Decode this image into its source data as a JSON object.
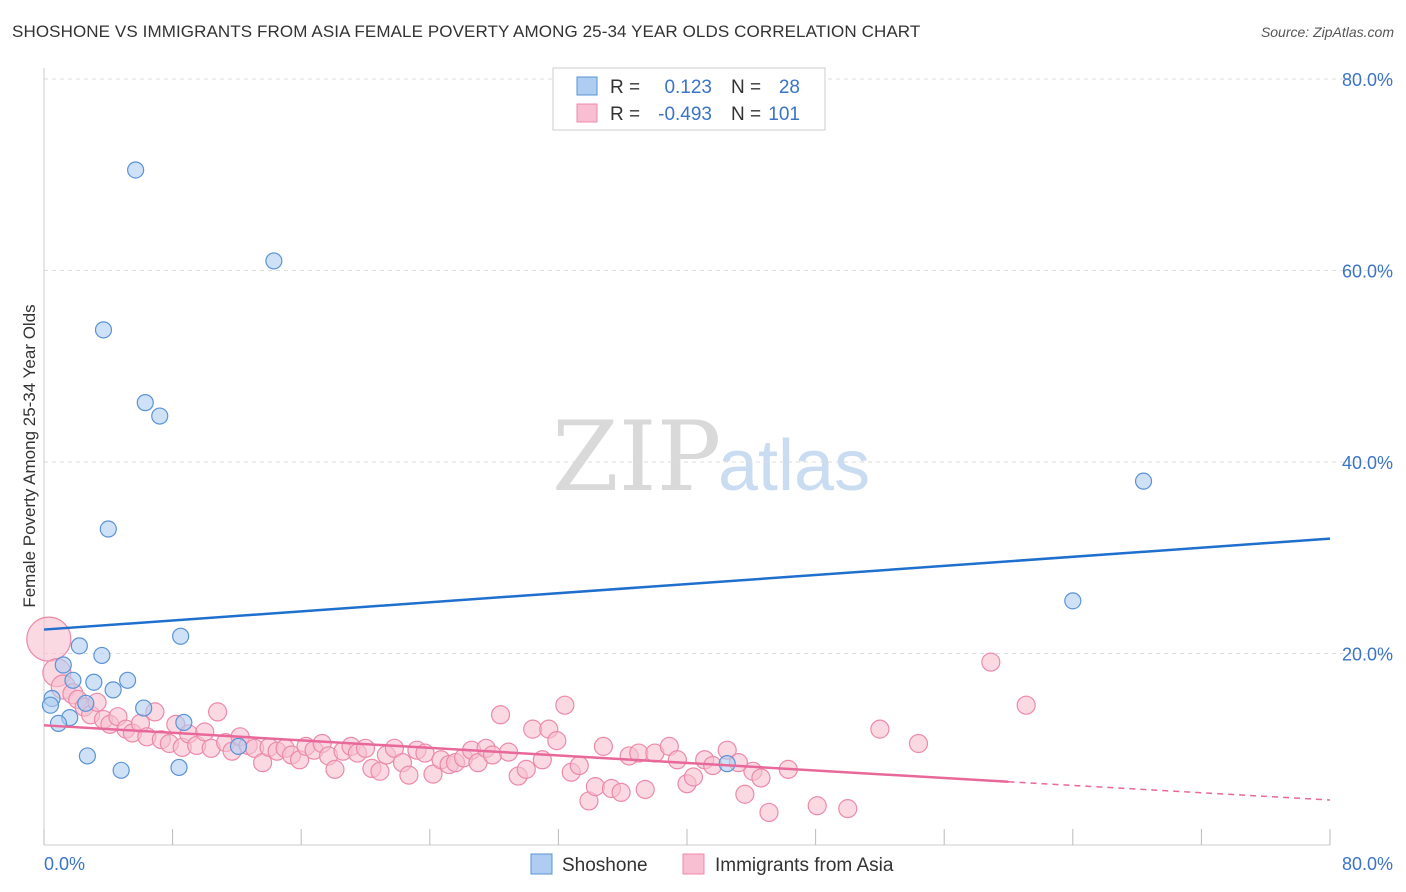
{
  "header": {
    "title": "SHOSHONE VS IMMIGRANTS FROM ASIA FEMALE POVERTY AMONG 25-34 YEAR OLDS CORRELATION CHART",
    "source": "Source: ZipAtlas.com"
  },
  "watermark": {
    "zip": "ZIP",
    "atlas": "atlas"
  },
  "colors": {
    "shoshone_fill": "#aecdf0",
    "shoshone_stroke": "#5b93d6",
    "shoshone_line": "#1f6fce",
    "asia_fill": "#f7bfd1",
    "asia_stroke": "#ec8aab",
    "asia_line": "#e8689a",
    "tick_label": "#3a74c9",
    "grid": "#dddddd"
  },
  "legend": {
    "rows": [
      {
        "r_label": "R =",
        "r_value": "0.123",
        "n_label": "N =",
        "n_value": "28"
      },
      {
        "r_label": "R =",
        "r_value": "-0.493",
        "n_label": "N =",
        "n_value": "101"
      }
    ]
  },
  "bottom_legend": {
    "series1": "Shoshone",
    "series2": "Immigrants from Asia"
  },
  "chart_data": {
    "type": "scatter",
    "title": "SHOSHONE VS IMMIGRANTS FROM ASIA FEMALE POVERTY AMONG 25-34 YEAR OLDS CORRELATION CHART",
    "xlabel": "",
    "ylabel": "Female Poverty Among 25-34 Year Olds",
    "xlim": [
      0,
      80
    ],
    "ylim": [
      0,
      80
    ],
    "x_tick_labels": [
      "0.0%",
      "80.0%"
    ],
    "y_ticks": [
      20,
      40,
      60,
      80
    ],
    "y_tick_labels": [
      "20.0%",
      "40.0%",
      "60.0%",
      "80.0%"
    ],
    "grid": true,
    "legend_position": "top-center",
    "series": [
      {
        "name": "Shoshone",
        "r": 0.123,
        "n": 28,
        "trend": {
          "x": [
            0,
            80
          ],
          "y": [
            22.5,
            32.0
          ]
        },
        "points": [
          [
            5.7,
            70.5
          ],
          [
            14.3,
            61.0
          ],
          [
            3.7,
            53.8
          ],
          [
            6.3,
            46.2
          ],
          [
            7.2,
            44.8
          ],
          [
            4.0,
            33.0
          ],
          [
            68.4,
            38.0
          ],
          [
            64.0,
            25.5
          ],
          [
            8.5,
            21.8
          ],
          [
            2.2,
            20.8
          ],
          [
            3.6,
            19.8
          ],
          [
            1.2,
            18.8
          ],
          [
            1.8,
            17.2
          ],
          [
            3.1,
            17.0
          ],
          [
            5.2,
            17.2
          ],
          [
            4.3,
            16.2
          ],
          [
            0.5,
            15.3
          ],
          [
            2.6,
            14.8
          ],
          [
            6.2,
            14.3
          ],
          [
            0.4,
            14.6
          ],
          [
            1.6,
            13.3
          ],
          [
            0.9,
            12.7
          ],
          [
            8.7,
            12.8
          ],
          [
            12.1,
            10.3
          ],
          [
            2.7,
            9.3
          ],
          [
            8.4,
            8.1
          ],
          [
            4.8,
            7.8
          ],
          [
            42.5,
            8.5
          ]
        ]
      },
      {
        "name": "Immigrants from Asia",
        "r": -0.493,
        "n": 101,
        "trend": {
          "x": [
            0,
            60
          ],
          "y": [
            12.5,
            6.6
          ]
        },
        "trend_dashed": {
          "x": [
            60,
            80
          ],
          "y": [
            6.6,
            4.7
          ]
        },
        "points": [
          [
            0.3,
            21.5
          ],
          [
            0.8,
            18.0
          ],
          [
            1.2,
            16.5
          ],
          [
            1.8,
            15.8
          ],
          [
            2.1,
            15.2
          ],
          [
            2.5,
            14.4
          ],
          [
            2.9,
            13.6
          ],
          [
            3.3,
            14.9
          ],
          [
            3.7,
            13.1
          ],
          [
            4.1,
            12.6
          ],
          [
            4.6,
            13.4
          ],
          [
            5.1,
            12.1
          ],
          [
            5.5,
            11.7
          ],
          [
            6.0,
            12.7
          ],
          [
            6.4,
            11.3
          ],
          [
            6.9,
            13.9
          ],
          [
            7.3,
            11.0
          ],
          [
            7.8,
            10.6
          ],
          [
            8.2,
            12.6
          ],
          [
            8.6,
            10.2
          ],
          [
            9.0,
            11.6
          ],
          [
            9.5,
            10.4
          ],
          [
            10.0,
            11.8
          ],
          [
            10.4,
            10.1
          ],
          [
            10.8,
            13.9
          ],
          [
            11.3,
            10.7
          ],
          [
            11.7,
            9.8
          ],
          [
            12.2,
            11.3
          ],
          [
            12.7,
            10.4
          ],
          [
            13.1,
            10.1
          ],
          [
            13.6,
            8.6
          ],
          [
            14.0,
            10.2
          ],
          [
            14.5,
            9.8
          ],
          [
            15.0,
            10.1
          ],
          [
            15.4,
            9.4
          ],
          [
            15.9,
            8.9
          ],
          [
            16.3,
            10.3
          ],
          [
            16.8,
            9.9
          ],
          [
            17.3,
            10.6
          ],
          [
            17.7,
            9.3
          ],
          [
            18.1,
            7.9
          ],
          [
            18.6,
            9.8
          ],
          [
            19.1,
            10.3
          ],
          [
            19.5,
            9.6
          ],
          [
            20.0,
            10.1
          ],
          [
            20.4,
            8.0
          ],
          [
            20.9,
            7.7
          ],
          [
            21.3,
            9.4
          ],
          [
            21.8,
            10.1
          ],
          [
            22.3,
            8.6
          ],
          [
            22.7,
            7.3
          ],
          [
            23.2,
            9.9
          ],
          [
            23.7,
            9.6
          ],
          [
            24.2,
            7.4
          ],
          [
            24.7,
            8.9
          ],
          [
            25.2,
            8.4
          ],
          [
            25.6,
            8.6
          ],
          [
            26.1,
            9.1
          ],
          [
            26.6,
            9.9
          ],
          [
            27.0,
            8.6
          ],
          [
            27.5,
            10.1
          ],
          [
            27.9,
            9.4
          ],
          [
            28.4,
            13.6
          ],
          [
            28.9,
            9.7
          ],
          [
            29.5,
            7.2
          ],
          [
            30.0,
            7.9
          ],
          [
            30.4,
            12.1
          ],
          [
            31.0,
            8.9
          ],
          [
            31.4,
            12.1
          ],
          [
            31.9,
            10.9
          ],
          [
            32.4,
            14.6
          ],
          [
            32.8,
            7.6
          ],
          [
            33.3,
            8.3
          ],
          [
            33.9,
            4.6
          ],
          [
            34.3,
            6.1
          ],
          [
            34.8,
            10.3
          ],
          [
            35.3,
            5.9
          ],
          [
            35.9,
            5.5
          ],
          [
            36.4,
            9.3
          ],
          [
            37.0,
            9.6
          ],
          [
            37.4,
            5.8
          ],
          [
            38.0,
            9.6
          ],
          [
            38.9,
            10.3
          ],
          [
            39.4,
            8.9
          ],
          [
            40.0,
            6.4
          ],
          [
            40.4,
            7.1
          ],
          [
            41.1,
            8.9
          ],
          [
            41.6,
            8.3
          ],
          [
            42.5,
            9.9
          ],
          [
            43.6,
            5.3
          ],
          [
            44.1,
            7.7
          ],
          [
            44.6,
            7.0
          ],
          [
            45.1,
            3.4
          ],
          [
            46.3,
            7.9
          ],
          [
            48.1,
            4.1
          ],
          [
            50.0,
            3.8
          ],
          [
            52.0,
            12.1
          ],
          [
            54.4,
            10.6
          ],
          [
            58.9,
            19.1
          ],
          [
            61.1,
            14.6
          ],
          [
            43.2,
            8.6
          ]
        ]
      }
    ]
  }
}
